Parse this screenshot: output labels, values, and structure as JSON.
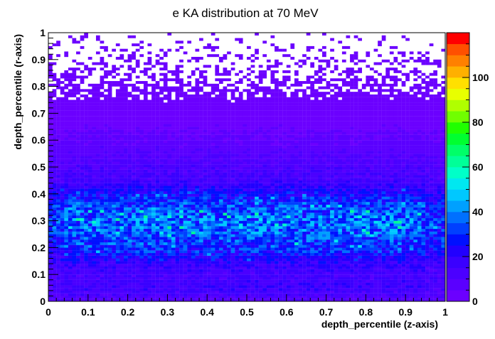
{
  "chart_data": {
    "type": "heatmap",
    "title": "e KA distribution at 70 MeV",
    "xlabel": "depth_percentile (z-axis)",
    "ylabel": "depth_percentile (r-axis)",
    "xlim": [
      0,
      1
    ],
    "ylim": [
      0,
      1
    ],
    "x_ticks": [
      "0",
      "0.1",
      "0.2",
      "0.3",
      "0.4",
      "0.5",
      "0.6",
      "0.7",
      "0.8",
      "0.9",
      "1"
    ],
    "y_ticks": [
      "0",
      "0.1",
      "0.2",
      "0.3",
      "0.4",
      "0.5",
      "0.6",
      "0.7",
      "0.8",
      "0.9",
      "1"
    ],
    "bins": {
      "x": 100,
      "y": 100
    },
    "grid": false,
    "colorbar": {
      "range": [
        0,
        120
      ],
      "ticks": [
        "0",
        "20",
        "40",
        "60",
        "80",
        "100"
      ],
      "colors": [
        "#6b00ff",
        "#5a00ff",
        "#4b00ff",
        "#3a00ff",
        "#2200ff",
        "#0010ff",
        "#0040ff",
        "#0070ff",
        "#00a0ff",
        "#00c8ff",
        "#00e8f0",
        "#00ffc8",
        "#00ff98",
        "#00ff68",
        "#00ff30",
        "#20ff00",
        "#70ff00",
        "#b0ff00",
        "#e8ff00",
        "#ffe000",
        "#ffb000",
        "#ff8000",
        "#ff5000",
        "#ff0000"
      ]
    },
    "density_profile_r": {
      "r": [
        0.0,
        0.05,
        0.1,
        0.15,
        0.2,
        0.25,
        0.3,
        0.35,
        0.4,
        0.45,
        0.5,
        0.55,
        0.6,
        0.65,
        0.7,
        0.75,
        0.8,
        0.85,
        0.9,
        0.95,
        1.0
      ],
      "mean_counts": [
        9,
        16,
        14,
        20,
        30,
        34,
        37,
        33,
        25,
        15,
        12,
        9,
        6,
        4,
        3,
        2,
        1.3,
        0.8,
        0.55,
        0.4,
        0.2
      ]
    }
  }
}
